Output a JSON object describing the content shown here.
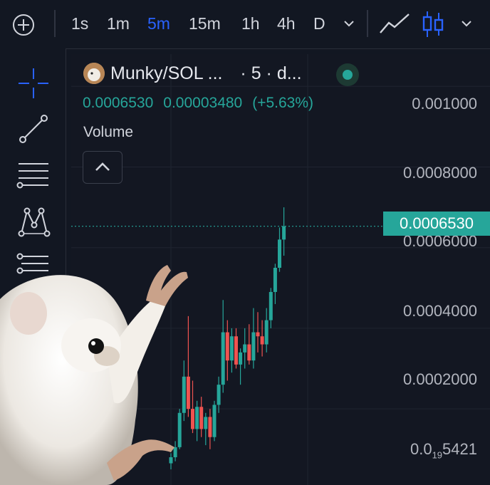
{
  "toolbar": {
    "timeframes": [
      "1s",
      "1m",
      "5m",
      "15m",
      "1h",
      "4h",
      "D"
    ],
    "active_timeframe": "5m",
    "icons": [
      "plus-circle-icon",
      "chevron-down-icon",
      "line-chart-icon",
      "candlestick-icon",
      "chevron-down-icon"
    ]
  },
  "sidebar": {
    "tools": [
      "crosshair-icon",
      "trend-line-icon",
      "horizontal-lines-icon",
      "pattern-icon",
      "fib-icon"
    ]
  },
  "legend": {
    "symbol": "Munky/SOL ...",
    "interval": "· 5 · d...",
    "close": "0.0006530",
    "change": "0.00003480",
    "change_pct": "(+5.63%)",
    "volume_label": "Volume"
  },
  "colors": {
    "background": "#131722",
    "up": "#26a69a",
    "down": "#ef5350",
    "accent": "#2962ff"
  },
  "price_axis": {
    "labels": [
      "0.001000",
      "0.0008000",
      "0.0006000",
      "0.0004000",
      "0.0002000"
    ],
    "bottom_label_main": "0.0",
    "bottom_label_sub": "19",
    "bottom_label_tail": "5421",
    "last_price": "0.0006530"
  },
  "chart_data": {
    "type": "candlestick",
    "ylim": [
      2e-05,
      0.00108
    ],
    "candles": [
      {
        "o": 6.5e-05,
        "h": 9e-05,
        "l": 5e-05,
        "c": 8e-05
      },
      {
        "o": 8e-05,
        "h": 0.00012,
        "l": 7e-05,
        "c": 0.000105
      },
      {
        "o": 0.000105,
        "h": 0.0002,
        "l": 0.0001,
        "c": 0.00019
      },
      {
        "o": 0.00019,
        "h": 0.00032,
        "l": 0.00017,
        "c": 0.00028
      },
      {
        "o": 0.00028,
        "h": 0.00043,
        "l": 0.00018,
        "c": 0.0002
      },
      {
        "o": 0.0002,
        "h": 0.00027,
        "l": 0.00014,
        "c": 0.00015
      },
      {
        "o": 0.00015,
        "h": 0.00022,
        "l": 0.00012,
        "c": 0.000205
      },
      {
        "o": 0.000205,
        "h": 0.00023,
        "l": 0.00013,
        "c": 0.00015
      },
      {
        "o": 0.00015,
        "h": 0.00019,
        "l": 0.00011,
        "c": 0.00018
      },
      {
        "o": 0.00018,
        "h": 0.0002,
        "l": 0.0001,
        "c": 0.00013
      },
      {
        "o": 0.00013,
        "h": 0.00022,
        "l": 0.00012,
        "c": 0.00021
      },
      {
        "o": 0.00021,
        "h": 0.00028,
        "l": 0.00019,
        "c": 0.00026
      },
      {
        "o": 0.00026,
        "h": 0.00047,
        "l": 0.00024,
        "c": 0.00039
      },
      {
        "o": 0.00039,
        "h": 0.00042,
        "l": 0.00027,
        "c": 0.00032
      },
      {
        "o": 0.00032,
        "h": 0.0004,
        "l": 0.00029,
        "c": 0.00038
      },
      {
        "o": 0.00038,
        "h": 0.0004,
        "l": 0.0003,
        "c": 0.00031
      },
      {
        "o": 0.00031,
        "h": 0.00035,
        "l": 0.00026,
        "c": 0.00034
      },
      {
        "o": 0.00034,
        "h": 0.0004,
        "l": 0.0003,
        "c": 0.00036
      },
      {
        "o": 0.00036,
        "h": 0.00041,
        "l": 0.00031,
        "c": 0.00032
      },
      {
        "o": 0.00032,
        "h": 0.00045,
        "l": 0.0003,
        "c": 0.00039
      },
      {
        "o": 0.00039,
        "h": 0.00044,
        "l": 0.00034,
        "c": 0.00038
      },
      {
        "o": 0.00038,
        "h": 0.00042,
        "l": 0.00033,
        "c": 0.00036
      },
      {
        "o": 0.00036,
        "h": 0.00045,
        "l": 0.00034,
        "c": 0.00042
      },
      {
        "o": 0.00042,
        "h": 0.0005,
        "l": 0.0004,
        "c": 0.00049
      },
      {
        "o": 0.00049,
        "h": 0.00056,
        "l": 0.00046,
        "c": 0.00055
      },
      {
        "o": 0.00055,
        "h": 0.00065,
        "l": 0.00054,
        "c": 0.00062
      },
      {
        "o": 0.00062,
        "h": 0.0007,
        "l": 0.00058,
        "c": 0.000653
      }
    ]
  }
}
